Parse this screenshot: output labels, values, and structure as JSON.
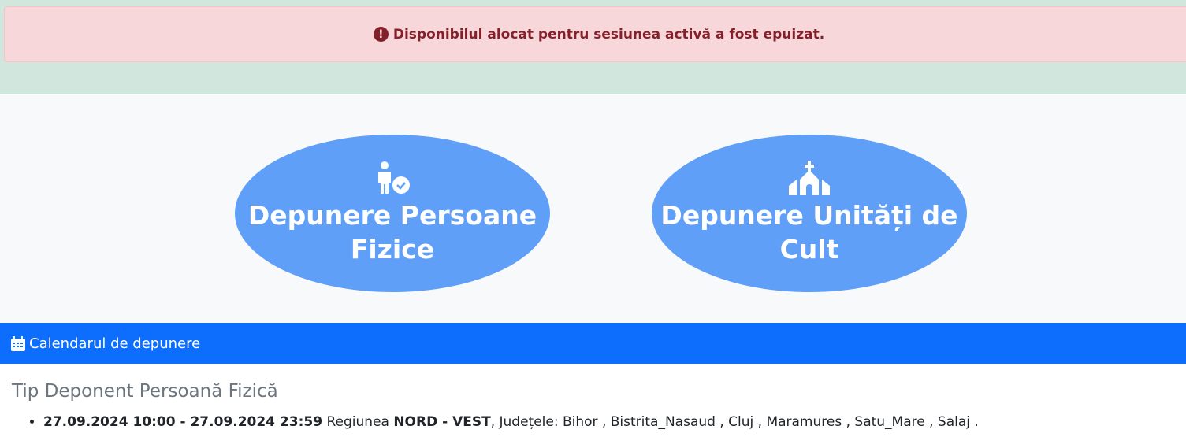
{
  "alert": {
    "icon": "exclamation-circle-icon",
    "text": "Disponibilul alocat pentru sesiunea activă a fost epuizat."
  },
  "options": [
    {
      "icon": "person-check-icon",
      "label": "Depunere Persoane Fizice"
    },
    {
      "icon": "church-icon",
      "label": "Depunere Unități de Cult"
    }
  ],
  "calendar": {
    "icon": "calendar-icon",
    "title": "Calendarul de depunere"
  },
  "section": {
    "title": "Tip Deponent Persoană Fizică",
    "items": [
      {
        "period": "27.09.2024 10:00 - 27.09.2024 23:59",
        "region_label": "Regiunea",
        "region": "NORD - VEST",
        "counties": ", Județele: Bihor , Bistrita_Nasaud , Cluj , Maramures , Satu_Mare , Salaj ."
      }
    ]
  },
  "colors": {
    "alert_bg": "#f8d7da",
    "alert_text": "#842029",
    "success_bg": "#d1e7dd",
    "oval": "#5f9ff8",
    "primary": "#0d6efd"
  }
}
